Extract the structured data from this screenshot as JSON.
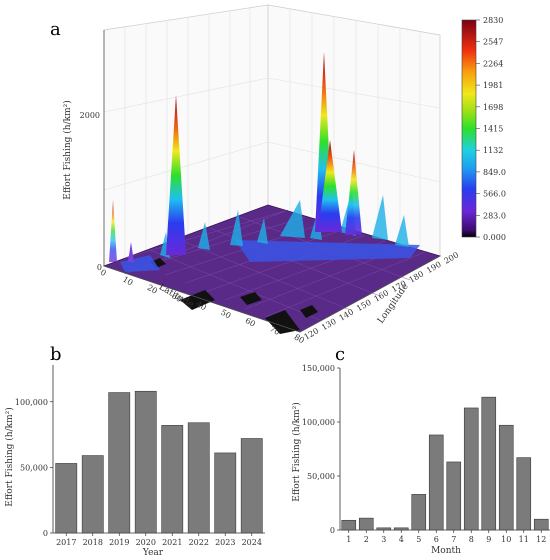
{
  "panels": {
    "a": {
      "letter": "a"
    },
    "b": {
      "letter": "b"
    },
    "c": {
      "letter": "c"
    }
  },
  "chart_data": [
    {
      "type": "heatmap",
      "panel": "a",
      "rendering": "3d-surface",
      "ylabel": "Effort Fishing (h/km²)",
      "xlabel": "Latitude",
      "zlabel": "Longitude",
      "z_ticks": [
        "2000",
        "0"
      ],
      "lat_ticks": [
        "0",
        "10",
        "20",
        "30",
        "40",
        "50",
        "60",
        "70",
        "80"
      ],
      "lon_ticks": [
        "120",
        "130",
        "140",
        "150",
        "160",
        "170",
        "180",
        "190",
        "200"
      ],
      "colorbar": {
        "labels": [
          "2830",
          "2547",
          "2264",
          "1981",
          "1698",
          "1415",
          "1132",
          "849.0",
          "566.0",
          "283.0",
          "0.000"
        ],
        "min": 0,
        "max": 2830
      },
      "peaks": [
        {
          "lon": 140,
          "lat": 5,
          "value": 1650
        },
        {
          "lon": 185,
          "lat": 10,
          "value": 2580
        },
        {
          "lon": 183,
          "lat": 9,
          "value": 1000
        },
        {
          "lon": 190,
          "lat": 12,
          "value": 700
        }
      ]
    },
    {
      "type": "bar",
      "panel": "b",
      "categories": [
        "2017",
        "2018",
        "2019",
        "2020",
        "2021",
        "2022",
        "2023",
        "2024"
      ],
      "values": [
        53000,
        59000,
        107000,
        108000,
        82000,
        84000,
        61000,
        72000
      ],
      "xlabel": "Year",
      "ylabel": "Effort Fishing (h/km²)",
      "yticks": [
        "0",
        "50,000",
        "100,000"
      ],
      "ylim": [
        0,
        128000
      ]
    },
    {
      "type": "bar",
      "panel": "c",
      "categories": [
        "1",
        "2",
        "3",
        "4",
        "5",
        "6",
        "7",
        "8",
        "9",
        "10",
        "11",
        "12"
      ],
      "values": [
        9000,
        11000,
        2000,
        2000,
        33000,
        88000,
        63000,
        113000,
        123000,
        97000,
        67000,
        10000
      ],
      "xlabel": "Month",
      "ylabel": "Effort Fishing (h/km²)",
      "yticks": [
        "0",
        "50,000",
        "100,000",
        "150,000"
      ],
      "ylim": [
        0,
        150000
      ]
    }
  ]
}
